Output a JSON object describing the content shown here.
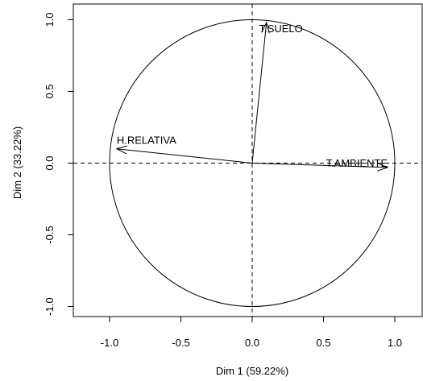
{
  "chart_data": {
    "type": "scatter",
    "subtype": "correlation-circle",
    "xlabel": "Dim 1 (59.22%)",
    "ylabel": "Dim 2 (33.22%)",
    "xlim": [
      -1.1,
      1.1
    ],
    "ylim": [
      -1.05,
      1.05
    ],
    "x_ticks": [
      -1.0,
      -0.5,
      0.0,
      0.5,
      1.0
    ],
    "x_tick_labels": [
      "-1.0",
      "-0.5",
      "0.0",
      "0.5",
      "1.0"
    ],
    "y_ticks": [
      -1.0,
      -0.5,
      0.0,
      0.5,
      1.0
    ],
    "y_tick_labels": [
      "-1.0",
      "-0.5",
      "0.0",
      "0.5",
      "1.0"
    ],
    "unit_circle": true,
    "reference_lines": [
      "x=0",
      "y=0"
    ],
    "grid": false,
    "variables": [
      {
        "label": "T.SUELO",
        "x": 0.1,
        "y": 0.98
      },
      {
        "label": "H.RELATIVA",
        "x": -0.95,
        "y": 0.1
      },
      {
        "label": "T.AMBIENTE",
        "x": 0.95,
        "y": -0.03
      }
    ],
    "colors": {
      "stroke": "#000000",
      "background": "#ffffff"
    }
  }
}
